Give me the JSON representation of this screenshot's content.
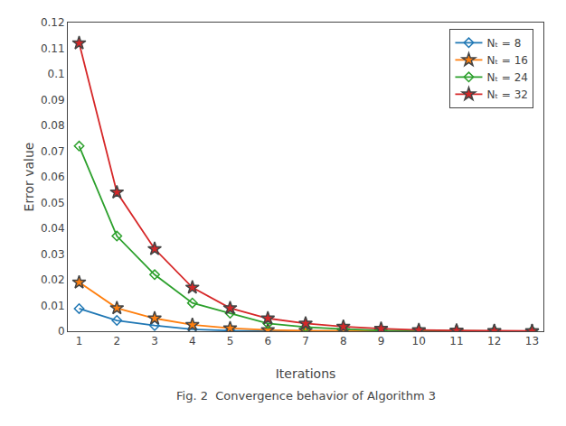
{
  "chart_data": {
    "type": "line",
    "xlabel": "Iterations",
    "ylabel": "Error value",
    "caption": "Fig. 2  Convergence behavior of Algorithm 3",
    "x": [
      1,
      2,
      3,
      4,
      5,
      6,
      7,
      8,
      9,
      10,
      11,
      12,
      13
    ],
    "xlim": [
      0.7,
      13.3
    ],
    "xticks": [
      1,
      2,
      3,
      4,
      5,
      6,
      7,
      8,
      9,
      10,
      11,
      12,
      13
    ],
    "ylim": [
      0,
      0.12
    ],
    "yticks": [
      0,
      0.01,
      0.02,
      0.03,
      0.04,
      0.05,
      0.06,
      0.07,
      0.08,
      0.09,
      0.1,
      0.11,
      0.12
    ],
    "grid": false,
    "legend": "upper right",
    "series": [
      {
        "name": "Nₜ = 8",
        "marker": "diamond",
        "line_style": "solid",
        "values": [
          0.0088,
          0.0042,
          0.0022,
          0.00075,
          0.00025,
          0.0001,
          4e-05,
          1e-05,
          5e-06,
          3e-06,
          2e-06,
          1.5e-06,
          1e-06
        ]
      },
      {
        "name": "Nₜ = 16",
        "marker": "star",
        "line_style": "solid",
        "values": [
          0.019,
          0.009,
          0.005,
          0.0025,
          0.0012,
          0.0005,
          0.00022,
          0.0001,
          5e-05,
          2e-05,
          1e-05,
          7e-06,
          4e-06
        ]
      },
      {
        "name": "Nₜ = 24",
        "marker": "diamond",
        "line_style": "solid",
        "values": [
          0.072,
          0.037,
          0.022,
          0.011,
          0.007,
          0.003,
          0.0016,
          0.0008,
          0.0003,
          0.00015,
          8e-05,
          4e-05,
          2e-05
        ]
      },
      {
        "name": "Nₜ = 32",
        "marker": "star",
        "line_style": "solid",
        "values": [
          0.112,
          0.054,
          0.032,
          0.017,
          0.009,
          0.005,
          0.003,
          0.0018,
          0.001,
          0.0005,
          0.0003,
          0.00015,
          8e-05
        ]
      }
    ]
  }
}
